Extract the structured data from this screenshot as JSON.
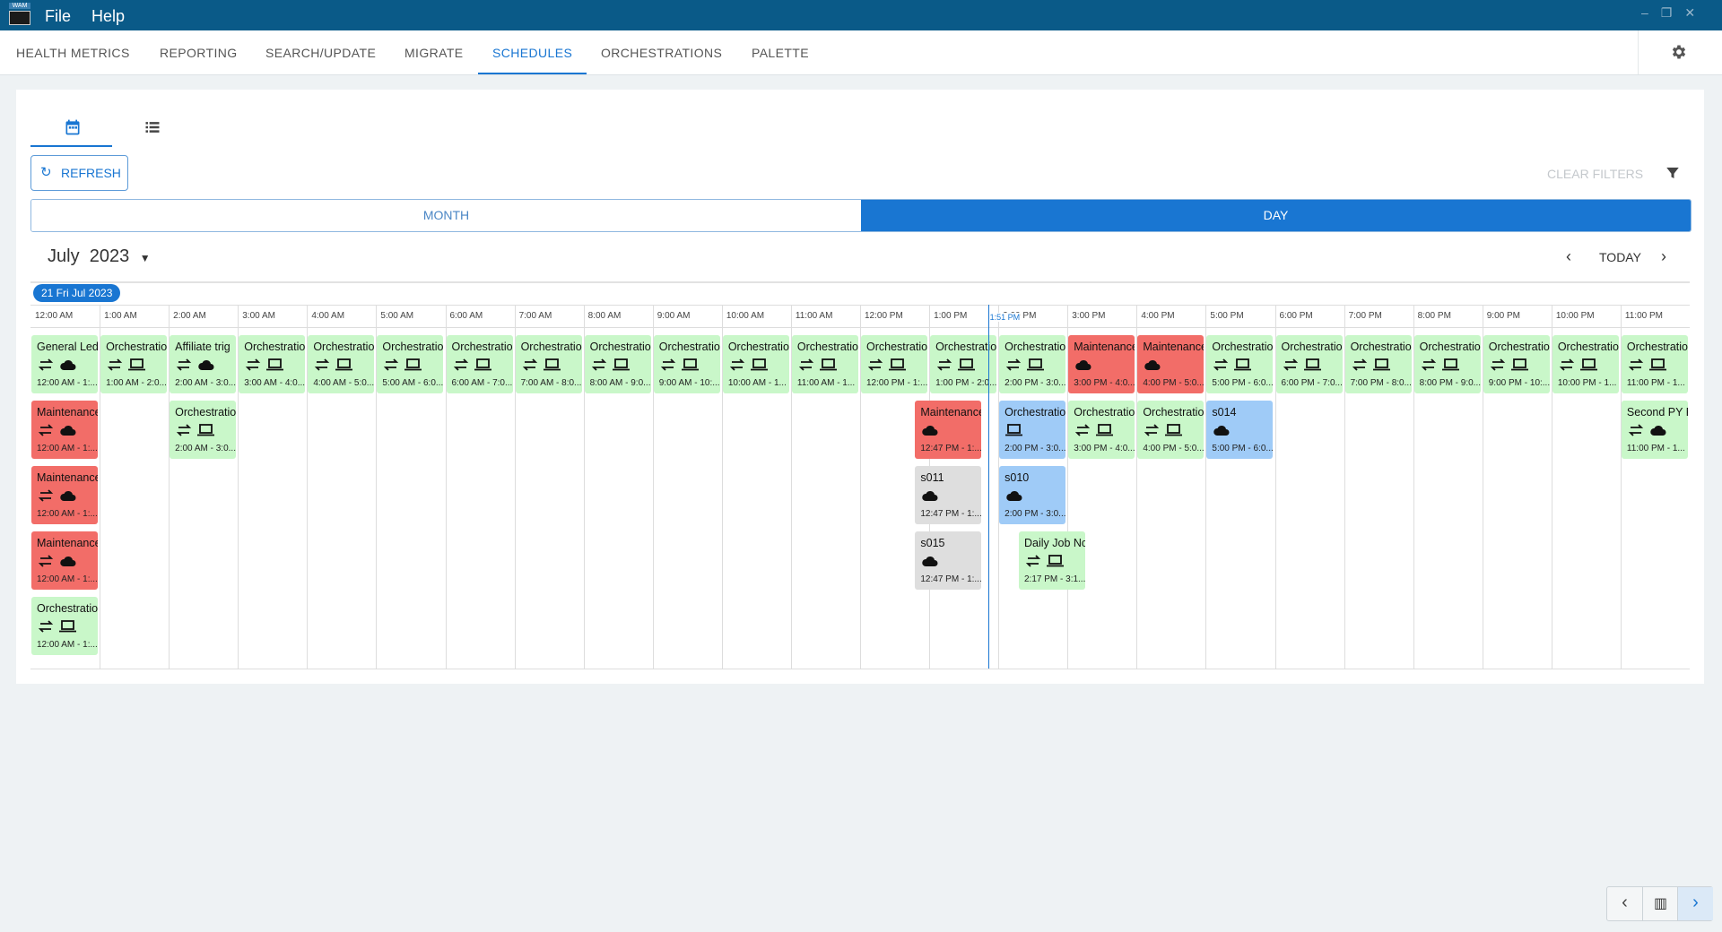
{
  "app": {
    "logo": "WAM",
    "menu": [
      "File",
      "Help"
    ]
  },
  "nav": {
    "tabs": [
      "HEALTH METRICS",
      "REPORTING",
      "SEARCH/UPDATE",
      "MIGRATE",
      "SCHEDULES",
      "ORCHESTRATIONS",
      "PALETTE"
    ],
    "active": 4
  },
  "toolbar": {
    "refresh": "REFRESH",
    "clear_filters": "CLEAR FILTERS"
  },
  "view_toggle": {
    "options": [
      "MONTH",
      "DAY"
    ],
    "active": 1
  },
  "calendar": {
    "month": "July",
    "year": "2023",
    "today": "TODAY",
    "date_chip": "21 Fri Jul 2023",
    "hours": [
      "12:00 AM",
      "1:00 AM",
      "2:00 AM",
      "3:00 AM",
      "4:00 AM",
      "5:00 AM",
      "6:00 AM",
      "7:00 AM",
      "8:00 AM",
      "9:00 AM",
      "10:00 AM",
      "11:00 AM",
      "12:00 PM",
      "1:00 PM",
      "2:00 PM",
      "3:00 PM",
      "4:00 PM",
      "5:00 PM",
      "6:00 PM",
      "7:00 PM",
      "8:00 PM",
      "9:00 PM",
      "10:00 PM",
      "11:00 PM"
    ],
    "now": "1:51 PM",
    "rows": [
      [
        {
          "title": "General Ledg",
          "time": "12:00 AM - 1:...",
          "color": "#c9f7c9",
          "icons": [
            "repeat",
            "cloud"
          ]
        },
        {
          "title": "Orchestratio",
          "time": "1:00 AM - 2:0...",
          "color": "#c9f7c9",
          "icons": [
            "repeat",
            "laptop"
          ]
        },
        {
          "title": "Affiliate trig",
          "time": "2:00 AM - 3:0...",
          "color": "#c9f7c9",
          "icons": [
            "repeat",
            "cloud"
          ]
        },
        {
          "title": "Orchestratio",
          "time": "3:00 AM - 4:0...",
          "color": "#c9f7c9",
          "icons": [
            "repeat",
            "laptop"
          ]
        },
        {
          "title": "Orchestratio",
          "time": "4:00 AM - 5:0...",
          "color": "#c9f7c9",
          "icons": [
            "repeat",
            "laptop"
          ]
        },
        {
          "title": "Orchestratio",
          "time": "5:00 AM - 6:0...",
          "color": "#c9f7c9",
          "icons": [
            "repeat",
            "laptop"
          ]
        },
        {
          "title": "Orchestratio",
          "time": "6:00 AM - 7:0...",
          "color": "#c9f7c9",
          "icons": [
            "repeat",
            "laptop"
          ]
        },
        {
          "title": "Orchestratio",
          "time": "7:00 AM - 8:0...",
          "color": "#c9f7c9",
          "icons": [
            "repeat",
            "laptop"
          ]
        },
        {
          "title": "Orchestratio",
          "time": "8:00 AM - 9:0...",
          "color": "#c9f7c9",
          "icons": [
            "repeat",
            "laptop"
          ]
        },
        {
          "title": "Orchestratio",
          "time": "9:00 AM - 10:...",
          "color": "#c9f7c9",
          "icons": [
            "repeat",
            "laptop"
          ]
        },
        {
          "title": "Orchestratio",
          "time": "10:00 AM - 1...",
          "color": "#c9f7c9",
          "icons": [
            "repeat",
            "laptop"
          ]
        },
        {
          "title": "Orchestratio",
          "time": "11:00 AM - 1...",
          "color": "#c9f7c9",
          "icons": [
            "repeat",
            "laptop"
          ]
        },
        {
          "title": "Orchestratio",
          "time": "12:00 PM - 1:...",
          "color": "#c9f7c9",
          "icons": [
            "repeat",
            "laptop"
          ]
        },
        {
          "title": "Orchestratio",
          "time": "1:00 PM - 2:0...",
          "color": "#c9f7c9",
          "icons": [
            "repeat",
            "laptop"
          ]
        },
        {
          "title": "Orchestratio",
          "time": "2:00 PM - 3:0...",
          "color": "#c9f7c9",
          "icons": [
            "repeat",
            "laptop"
          ]
        },
        {
          "title": "Maintenance",
          "time": "3:00 PM - 4:0...",
          "color": "#f26d68",
          "icons": [
            "cloud"
          ]
        },
        {
          "title": "Maintenance",
          "time": "4:00 PM - 5:0...",
          "color": "#f26d68",
          "icons": [
            "cloud"
          ]
        },
        {
          "title": "Orchestratio",
          "time": "5:00 PM - 6:0...",
          "color": "#c9f7c9",
          "icons": [
            "repeat",
            "laptop"
          ]
        },
        {
          "title": "Orchestratio",
          "time": "6:00 PM - 7:0...",
          "color": "#c9f7c9",
          "icons": [
            "repeat",
            "laptop"
          ]
        },
        {
          "title": "Orchestratio",
          "time": "7:00 PM - 8:0...",
          "color": "#c9f7c9",
          "icons": [
            "repeat",
            "laptop"
          ]
        },
        {
          "title": "Orchestratio",
          "time": "8:00 PM - 9:0...",
          "color": "#c9f7c9",
          "icons": [
            "repeat",
            "laptop"
          ]
        },
        {
          "title": "Orchestratio",
          "time": "9:00 PM - 10:...",
          "color": "#c9f7c9",
          "icons": [
            "repeat",
            "laptop"
          ]
        },
        {
          "title": "Orchestratio",
          "time": "10:00 PM - 1...",
          "color": "#c9f7c9",
          "icons": [
            "repeat",
            "laptop"
          ]
        },
        {
          "title": "Orchestratio",
          "time": "11:00 PM - 1...",
          "color": "#c9f7c9",
          "icons": [
            "repeat",
            "laptop"
          ]
        }
      ],
      [
        {
          "title": "Maintenance",
          "time": "12:00 AM - 1:...",
          "color": "#f26d68",
          "icons": [
            "repeat",
            "cloud"
          ]
        },
        {
          "title": "Orchestratio",
          "time": "2:00 AM - 3:0...",
          "color": "#c9f7c9",
          "icons": [
            "repeat",
            "laptop"
          ]
        },
        {
          "title": "Maintenance",
          "time": "12:47 PM - 1:...",
          "color": "#f26d68",
          "icons": [
            "cloud"
          ]
        },
        {
          "title": "Orchestratio",
          "time": "2:00 PM - 3:0...",
          "color": "#9fcbf7",
          "icons": [
            "laptop"
          ]
        },
        {
          "title": "Orchestratio",
          "time": "3:00 PM - 4:0...",
          "color": "#c9f7c9",
          "icons": [
            "repeat",
            "laptop"
          ]
        },
        {
          "title": "Orchestratio",
          "time": "4:00 PM - 5:0...",
          "color": "#c9f7c9",
          "icons": [
            "repeat",
            "laptop"
          ]
        },
        {
          "title": "s014",
          "time": "5:00 PM - 6:0...",
          "color": "#9fcbf7",
          "icons": [
            "cloud"
          ]
        },
        {
          "title": "Second PY F",
          "time": "11:00 PM - 1...",
          "color": "#c9f7c9",
          "icons": [
            "repeat",
            "cloud"
          ]
        }
      ],
      [
        {
          "title": "Maintenance",
          "time": "12:00 AM - 1:...",
          "color": "#f26d68",
          "icons": [
            "repeat",
            "cloud"
          ]
        },
        {
          "title": "s011",
          "time": "12:47 PM - 1:...",
          "color": "#dedede",
          "icons": [
            "cloud"
          ]
        },
        {
          "title": "s010",
          "time": "2:00 PM - 3:0...",
          "color": "#9fcbf7",
          "icons": [
            "cloud"
          ]
        }
      ],
      [
        {
          "title": "Maintenance",
          "time": "12:00 AM - 1:...",
          "color": "#f26d68",
          "icons": [
            "repeat",
            "cloud"
          ]
        },
        {
          "title": "s015",
          "time": "12:47 PM - 1:...",
          "color": "#dedede",
          "icons": [
            "cloud"
          ]
        },
        {
          "title": "Daily Job Nc",
          "time": "2:17 PM - 3:1...",
          "color": "#c9f7c9",
          "icons": [
            "repeat",
            "laptop"
          ]
        }
      ],
      [
        {
          "title": "Orchestratio",
          "time": "12:00 AM - 1:...",
          "color": "#c9f7c9",
          "icons": [
            "repeat",
            "laptop"
          ]
        }
      ]
    ]
  }
}
